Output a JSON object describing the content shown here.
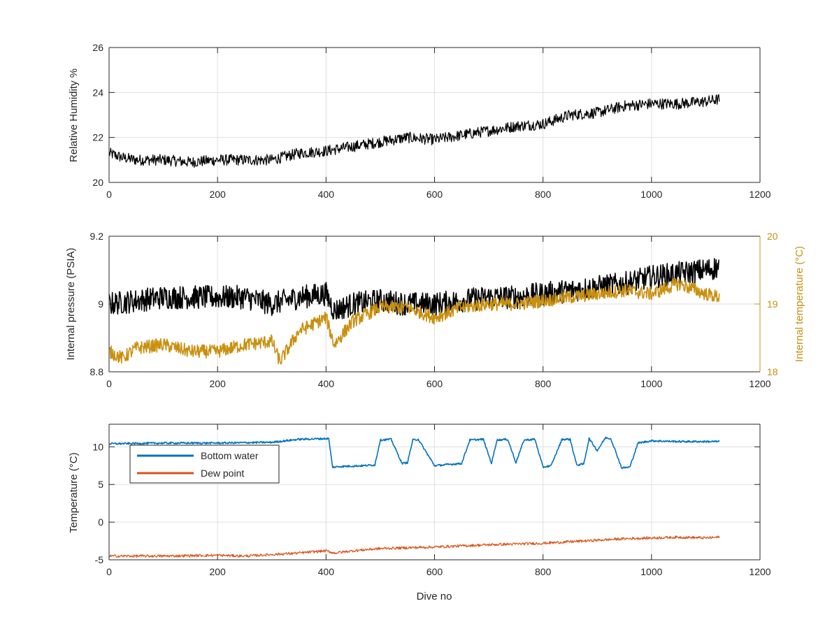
{
  "chart_data": [
    {
      "type": "line",
      "xlabel": "",
      "ylabel": "Relative Humidity %",
      "xlim": [
        0,
        1200
      ],
      "ylim": [
        20,
        26
      ],
      "xticks": [
        "0",
        "200",
        "400",
        "600",
        "800",
        "1000",
        "1200"
      ],
      "yticks": [
        "20",
        "22",
        "24",
        "26"
      ],
      "grid": true,
      "series": [
        {
          "color": "#000000",
          "x": [
            0,
            25,
            50,
            100,
            150,
            200,
            250,
            300,
            350,
            400,
            450,
            500,
            550,
            600,
            650,
            700,
            750,
            800,
            850,
            900,
            950,
            1000,
            1050,
            1100,
            1125
          ],
          "y": [
            21.3,
            21.1,
            21.0,
            21.0,
            20.9,
            21.0,
            21.0,
            21.0,
            21.3,
            21.4,
            21.6,
            21.8,
            22.0,
            21.9,
            22.1,
            22.3,
            22.5,
            22.6,
            23.0,
            23.1,
            23.4,
            23.5,
            23.5,
            23.6,
            23.7
          ],
          "noise": 0.5
        }
      ]
    },
    {
      "type": "line",
      "xlabel": "",
      "ylabel": "Internal pressure (PSIA)",
      "ylabel_right": "Internal temperature (°C)",
      "xlim": [
        0,
        1200
      ],
      "ylim": [
        8.8,
        9.2
      ],
      "ylim_right": [
        18,
        20
      ],
      "xticks": [
        "0",
        "200",
        "400",
        "600",
        "800",
        "1000",
        "1200"
      ],
      "yticks": [
        "8.8",
        "9",
        "9.2"
      ],
      "yticks_right": [
        "18",
        "19",
        "20"
      ],
      "grid": true,
      "series": [
        {
          "axis": "left",
          "color": "#000000",
          "x": [
            0,
            50,
            100,
            150,
            200,
            250,
            300,
            350,
            400,
            415,
            450,
            500,
            550,
            600,
            650,
            700,
            750,
            800,
            850,
            900,
            950,
            1000,
            1050,
            1100,
            1125
          ],
          "y": [
            9.0,
            9.01,
            9.02,
            9.02,
            9.02,
            9.02,
            9.0,
            9.02,
            9.03,
            8.98,
            9.0,
            9.01,
            9.0,
            9.0,
            9.01,
            9.02,
            9.02,
            9.03,
            9.04,
            9.05,
            9.06,
            9.08,
            9.09,
            9.1,
            9.11
          ],
          "noise": 0.07
        },
        {
          "axis": "right",
          "color": "#c9900f",
          "x": [
            0,
            25,
            50,
            100,
            150,
            200,
            250,
            300,
            315,
            350,
            400,
            415,
            450,
            500,
            550,
            600,
            650,
            700,
            750,
            800,
            850,
            900,
            950,
            1000,
            1050,
            1100,
            1125
          ],
          "y": [
            18.3,
            18.2,
            18.35,
            18.4,
            18.3,
            18.3,
            18.4,
            18.45,
            18.15,
            18.6,
            18.8,
            18.4,
            18.75,
            18.95,
            18.95,
            18.8,
            18.95,
            19.0,
            19.0,
            19.05,
            19.1,
            19.15,
            19.2,
            19.15,
            19.3,
            19.15,
            19.1
          ],
          "noise": 0.2
        }
      ]
    },
    {
      "type": "line",
      "xlabel": "Dive no",
      "ylabel": "Temperature (°C)",
      "xlim": [
        0,
        1200
      ],
      "ylim": [
        -5,
        13
      ],
      "xticks": [
        "0",
        "200",
        "400",
        "600",
        "800",
        "1000",
        "1200"
      ],
      "yticks": [
        "-5",
        "0",
        "5",
        "10"
      ],
      "grid": true,
      "legend": "top-left",
      "series": [
        {
          "name": "Bottom water",
          "color": "#0072bd",
          "x": [
            0,
            100,
            200,
            300,
            350,
            405,
            412,
            430,
            470,
            490,
            500,
            520,
            540,
            550,
            560,
            570,
            600,
            650,
            665,
            690,
            705,
            715,
            735,
            750,
            765,
            785,
            800,
            815,
            835,
            850,
            862,
            875,
            885,
            900,
            915,
            925,
            945,
            960,
            975,
            1000,
            1050,
            1100,
            1125
          ],
          "y": [
            10.4,
            10.5,
            10.5,
            10.6,
            11.0,
            11.1,
            7.3,
            7.4,
            7.5,
            7.6,
            10.9,
            11.0,
            7.8,
            7.9,
            10.9,
            11.0,
            7.5,
            7.8,
            10.9,
            11.0,
            7.8,
            10.9,
            11.0,
            7.9,
            10.9,
            11.0,
            7.3,
            7.5,
            11.0,
            11.0,
            7.6,
            7.7,
            11.1,
            9.5,
            11.2,
            11.1,
            7.2,
            7.3,
            10.5,
            10.8,
            10.7,
            10.7,
            10.7
          ],
          "noise": 0.25
        },
        {
          "name": "Dew point",
          "color": "#d95319",
          "x": [
            0,
            100,
            200,
            250,
            300,
            350,
            400,
            415,
            450,
            500,
            600,
            700,
            800,
            900,
            950,
            1000,
            1050,
            1100,
            1125
          ],
          "y": [
            -4.5,
            -4.5,
            -4.4,
            -4.5,
            -4.3,
            -4.1,
            -3.8,
            -4.1,
            -3.8,
            -3.5,
            -3.3,
            -3.0,
            -2.8,
            -2.4,
            -2.2,
            -2.1,
            -2.0,
            -2.1,
            -2.0
          ],
          "noise": 0.35
        }
      ]
    }
  ]
}
